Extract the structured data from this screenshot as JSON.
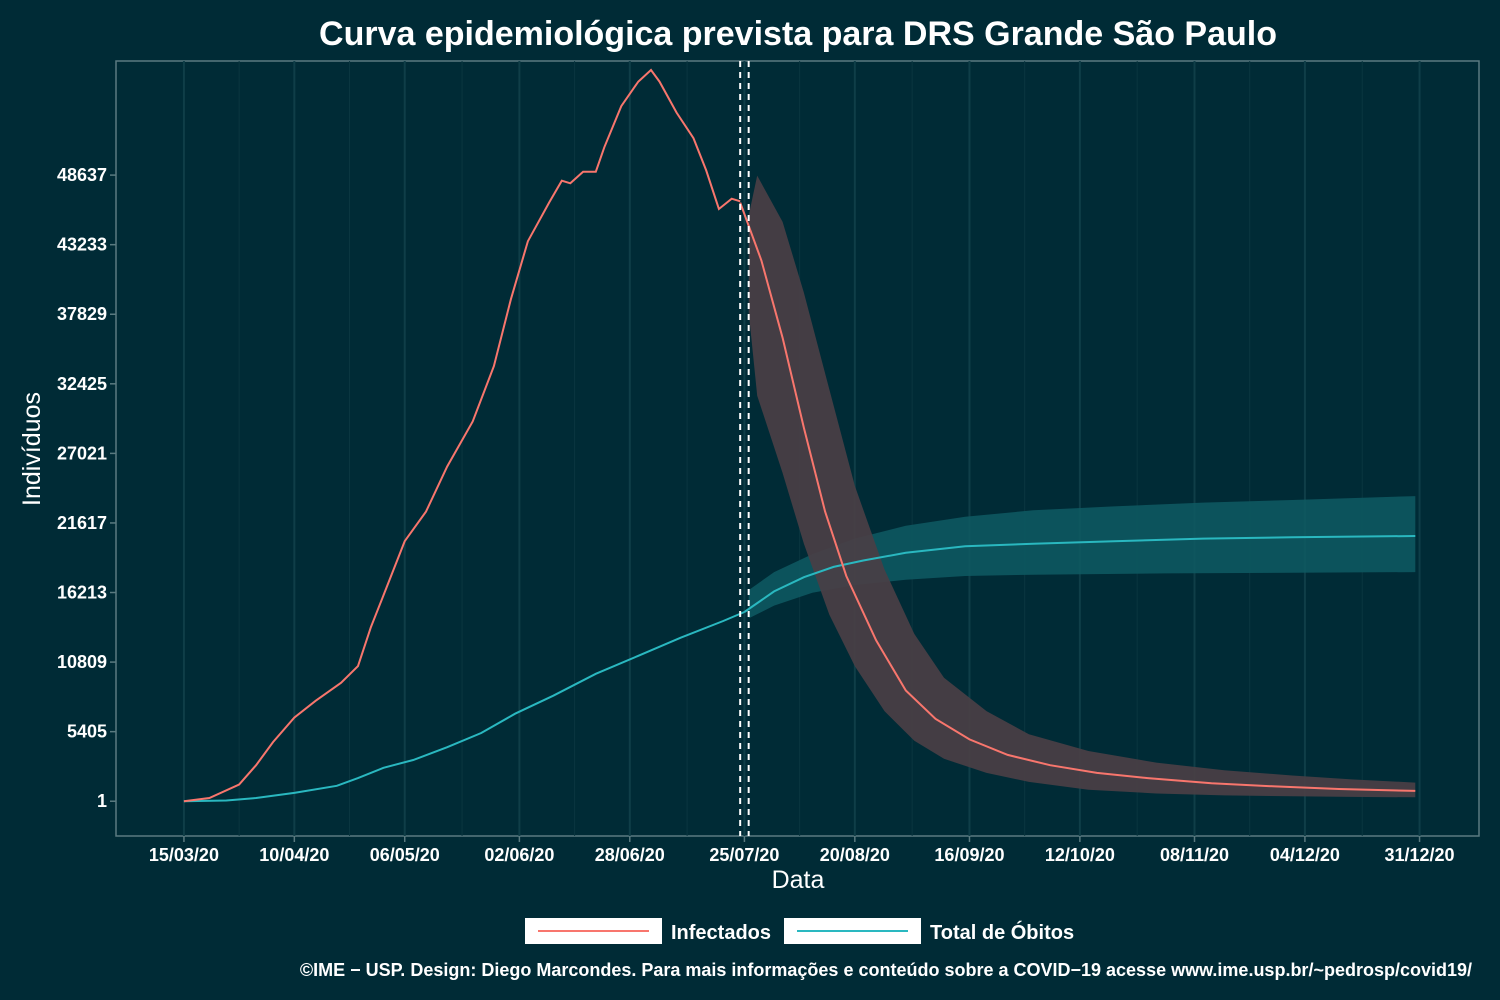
{
  "chart_data": {
    "type": "line",
    "title": "Curva epidemiológica prevista para DRS Grande São Paulo",
    "xlabel": "Data",
    "ylabel": "Indivíduos",
    "x_ticks": [
      "15/03/20",
      "10/04/20",
      "06/05/20",
      "02/06/20",
      "28/06/20",
      "25/07/20",
      "20/08/20",
      "16/09/20",
      "12/10/20",
      "08/11/20",
      "04/12/20",
      "31/12/20"
    ],
    "y_ticks": [
      1,
      5405,
      10809,
      16213,
      21617,
      27021,
      32425,
      37829,
      43233,
      48637
    ],
    "xlim": [
      "2020-02-28",
      "2021-01-14"
    ],
    "ylim": [
      -2700,
      57500
    ],
    "grid": true,
    "legend_position": "bottom",
    "forecast_markers": [
      "2020-07-24",
      "2020-07-26"
    ],
    "series": [
      {
        "name": "Infectados",
        "color": "#f8766d",
        "observed": [
          [
            "2020-03-15",
            1
          ],
          [
            "2020-03-21",
            250
          ],
          [
            "2020-03-28",
            1300
          ],
          [
            "2020-04-01",
            2800
          ],
          [
            "2020-04-05",
            4600
          ],
          [
            "2020-04-10",
            6500
          ],
          [
            "2020-04-15",
            7800
          ],
          [
            "2020-04-21",
            9200
          ],
          [
            "2020-04-25",
            10500
          ],
          [
            "2020-04-28",
            13500
          ],
          [
            "2020-05-01",
            16000
          ],
          [
            "2020-05-06",
            20200
          ],
          [
            "2020-05-11",
            22500
          ],
          [
            "2020-05-16",
            26000
          ],
          [
            "2020-05-22",
            29500
          ],
          [
            "2020-05-27",
            33800
          ],
          [
            "2020-05-31",
            39000
          ],
          [
            "2020-06-04",
            43500
          ],
          [
            "2020-06-09",
            46500
          ],
          [
            "2020-06-12",
            48200
          ],
          [
            "2020-06-14",
            48000
          ],
          [
            "2020-06-17",
            48900
          ],
          [
            "2020-06-20",
            48900
          ],
          [
            "2020-06-22",
            50800
          ],
          [
            "2020-06-26",
            54000
          ],
          [
            "2020-06-30",
            55900
          ],
          [
            "2020-07-03",
            56800
          ],
          [
            "2020-07-05",
            55900
          ],
          [
            "2020-07-09",
            53500
          ],
          [
            "2020-07-13",
            51500
          ],
          [
            "2020-07-16",
            49000
          ],
          [
            "2020-07-19",
            46000
          ],
          [
            "2020-07-22",
            46800
          ],
          [
            "2020-07-24",
            46600
          ]
        ],
        "forecast": [
          [
            "2020-07-24",
            46500
          ],
          [
            "2020-07-29",
            42000
          ],
          [
            "2020-08-03",
            36000
          ],
          [
            "2020-08-08",
            29000
          ],
          [
            "2020-08-13",
            22500
          ],
          [
            "2020-08-18",
            17500
          ],
          [
            "2020-08-25",
            12500
          ],
          [
            "2020-09-01",
            8600
          ],
          [
            "2020-09-08",
            6400
          ],
          [
            "2020-09-16",
            4800
          ],
          [
            "2020-09-25",
            3600
          ],
          [
            "2020-10-05",
            2800
          ],
          [
            "2020-10-16",
            2200
          ],
          [
            "2020-10-28",
            1800
          ],
          [
            "2020-11-12",
            1400
          ],
          [
            "2020-11-27",
            1150
          ],
          [
            "2020-12-12",
            950
          ],
          [
            "2020-12-30",
            800
          ]
        ],
        "band_lower": [
          [
            "2020-07-26",
            38000
          ],
          [
            "2020-07-28",
            31500
          ],
          [
            "2020-08-03",
            25500
          ],
          [
            "2020-08-08",
            20000
          ],
          [
            "2020-08-14",
            14500
          ],
          [
            "2020-08-20",
            10500
          ],
          [
            "2020-08-27",
            7000
          ],
          [
            "2020-09-03",
            4700
          ],
          [
            "2020-09-10",
            3300
          ],
          [
            "2020-09-20",
            2200
          ],
          [
            "2020-09-30",
            1500
          ],
          [
            "2020-10-14",
            900
          ],
          [
            "2020-10-30",
            600
          ],
          [
            "2020-11-15",
            450
          ],
          [
            "2020-12-01",
            380
          ],
          [
            "2020-12-15",
            340
          ],
          [
            "2020-12-30",
            310
          ]
        ],
        "band_upper": [
          [
            "2020-07-26",
            45500
          ],
          [
            "2020-07-28",
            48600
          ],
          [
            "2020-08-03",
            45000
          ],
          [
            "2020-08-08",
            39500
          ],
          [
            "2020-08-14",
            32000
          ],
          [
            "2020-08-20",
            24500
          ],
          [
            "2020-08-27",
            18000
          ],
          [
            "2020-09-03",
            13000
          ],
          [
            "2020-09-10",
            9600
          ],
          [
            "2020-09-20",
            7000
          ],
          [
            "2020-09-30",
            5200
          ],
          [
            "2020-10-14",
            3900
          ],
          [
            "2020-10-30",
            3000
          ],
          [
            "2020-11-15",
            2400
          ],
          [
            "2020-12-01",
            2000
          ],
          [
            "2020-12-15",
            1700
          ],
          [
            "2020-12-30",
            1450
          ]
        ]
      },
      {
        "name": "Total de Óbitos",
        "color": "#2ab8c0",
        "observed": [
          [
            "2020-03-15",
            1
          ],
          [
            "2020-03-25",
            60
          ],
          [
            "2020-04-01",
            250
          ],
          [
            "2020-04-10",
            650
          ],
          [
            "2020-04-20",
            1200
          ],
          [
            "2020-04-25",
            1800
          ],
          [
            "2020-05-01",
            2600
          ],
          [
            "2020-05-08",
            3200
          ],
          [
            "2020-05-16",
            4200
          ],
          [
            "2020-05-24",
            5300
          ],
          [
            "2020-06-01",
            6800
          ],
          [
            "2020-06-10",
            8200
          ],
          [
            "2020-06-20",
            9900
          ],
          [
            "2020-06-30",
            11300
          ],
          [
            "2020-07-10",
            12700
          ],
          [
            "2020-07-20",
            14000
          ],
          [
            "2020-07-25",
            14700
          ]
        ],
        "forecast": [
          [
            "2020-07-25",
            14700
          ],
          [
            "2020-08-01",
            16300
          ],
          [
            "2020-08-08",
            17400
          ],
          [
            "2020-08-15",
            18200
          ],
          [
            "2020-08-22",
            18700
          ],
          [
            "2020-09-01",
            19300
          ],
          [
            "2020-09-15",
            19800
          ],
          [
            "2020-10-01",
            20000
          ],
          [
            "2020-10-20",
            20200
          ],
          [
            "2020-11-10",
            20400
          ],
          [
            "2020-12-01",
            20500
          ],
          [
            "2020-12-30",
            20600
          ]
        ],
        "band_lower": [
          [
            "2020-07-26",
            14200
          ],
          [
            "2020-08-01",
            15200
          ],
          [
            "2020-08-10",
            16200
          ],
          [
            "2020-08-20",
            16800
          ],
          [
            "2020-09-01",
            17200
          ],
          [
            "2020-09-15",
            17500
          ],
          [
            "2020-10-01",
            17600
          ],
          [
            "2020-11-01",
            17700
          ],
          [
            "2020-12-01",
            17750
          ],
          [
            "2020-12-30",
            17800
          ]
        ],
        "band_upper": [
          [
            "2020-07-26",
            16400
          ],
          [
            "2020-08-01",
            17800
          ],
          [
            "2020-08-10",
            19200
          ],
          [
            "2020-08-20",
            20400
          ],
          [
            "2020-09-01",
            21400
          ],
          [
            "2020-09-15",
            22100
          ],
          [
            "2020-10-01",
            22600
          ],
          [
            "2020-10-20",
            22900
          ],
          [
            "2020-11-10",
            23200
          ],
          [
            "2020-12-01",
            23400
          ],
          [
            "2020-12-30",
            23700
          ]
        ]
      }
    ]
  },
  "footer": {
    "caption": "©IME − USP. Design: Diego Marcondes. Para mais informações e conteúdo sobre a COVID−19 acesse www.ime.usp.br/~pedrosp/covid19/"
  }
}
